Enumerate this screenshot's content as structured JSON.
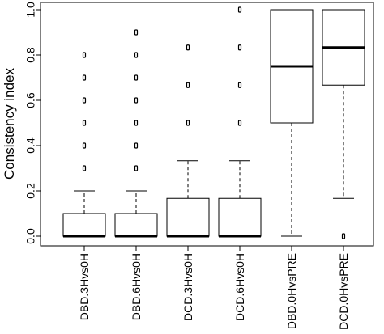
{
  "chart_data": {
    "type": "boxplot",
    "title": "",
    "xlabel": "",
    "ylabel": "Consistency index",
    "ylim": [
      0,
      1
    ],
    "y_ticks": [
      "0.0",
      "0.2",
      "0.4",
      "0.6",
      "0.8",
      "1.0"
    ],
    "y_tick_values": [
      0,
      0.2,
      0.4,
      0.6,
      0.8,
      1.0
    ],
    "grid": false,
    "x_tick_label_orientation": "vertical",
    "categories": [
      "DBD.3Hvs0H",
      "DBD.6Hvs0H",
      "DCD.3Hvs0H",
      "DCD.6Hvs0H",
      "DBD.0HvsPRE",
      "DCD.0HvsPRE"
    ],
    "boxes": [
      {
        "category": "DBD.3Hvs0H",
        "whisker_low": 0,
        "q1": 0,
        "median": 0,
        "q3": 0.1,
        "whisker_high": 0.2,
        "outliers": [
          0.3,
          0.4,
          0.5,
          0.6,
          0.7,
          0.8
        ]
      },
      {
        "category": "DBD.6Hvs0H",
        "whisker_low": 0,
        "q1": 0,
        "median": 0,
        "q3": 0.1,
        "whisker_high": 0.2,
        "outliers": [
          0.3,
          0.4,
          0.5,
          0.6,
          0.7,
          0.8,
          0.9
        ]
      },
      {
        "category": "DCD.3Hvs0H",
        "whisker_low": 0,
        "q1": 0,
        "median": 0,
        "q3": 0.167,
        "whisker_high": 0.333,
        "outliers": [
          0.5,
          0.667,
          0.833
        ]
      },
      {
        "category": "DCD.6Hvs0H",
        "whisker_low": 0,
        "q1": 0,
        "median": 0,
        "q3": 0.167,
        "whisker_high": 0.333,
        "outliers": [
          0.5,
          0.667,
          0.833,
          1.0
        ]
      },
      {
        "category": "DBD.0HvsPRE",
        "whisker_low": 0,
        "q1": 0.5,
        "median": 0.75,
        "q3": 1.0,
        "whisker_high": 1.0,
        "outliers": []
      },
      {
        "category": "DCD.0HvsPRE",
        "whisker_low": 0.167,
        "q1": 0.667,
        "median": 0.833,
        "q3": 1.0,
        "whisker_high": 1.0,
        "outliers": [
          0
        ]
      }
    ]
  }
}
